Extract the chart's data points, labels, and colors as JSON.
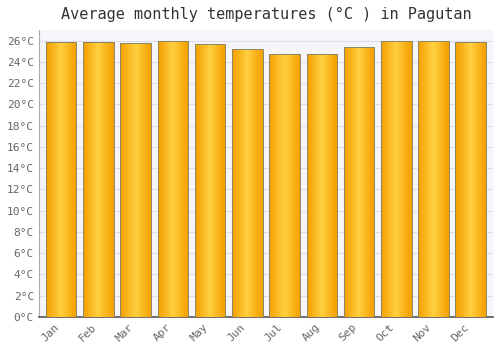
{
  "title": "Average monthly temperatures (°C ) in Pagutan",
  "months": [
    "Jan",
    "Feb",
    "Mar",
    "Apr",
    "May",
    "Jun",
    "Jul",
    "Aug",
    "Sep",
    "Oct",
    "Nov",
    "Dec"
  ],
  "values": [
    25.9,
    25.9,
    25.8,
    26.0,
    25.7,
    25.2,
    24.7,
    24.7,
    25.4,
    26.0,
    26.0,
    25.9
  ],
  "bar_color_center": "#FFD040",
  "bar_color_edge": "#F5A000",
  "bar_border_color": "#888866",
  "background_color": "#FFFFFF",
  "plot_bg_color": "#F5F5FA",
  "grid_color": "#DDDDEE",
  "ylim": [
    0,
    27
  ],
  "ytick_step": 2,
  "title_fontsize": 11,
  "tick_fontsize": 8,
  "bar_width": 0.82
}
